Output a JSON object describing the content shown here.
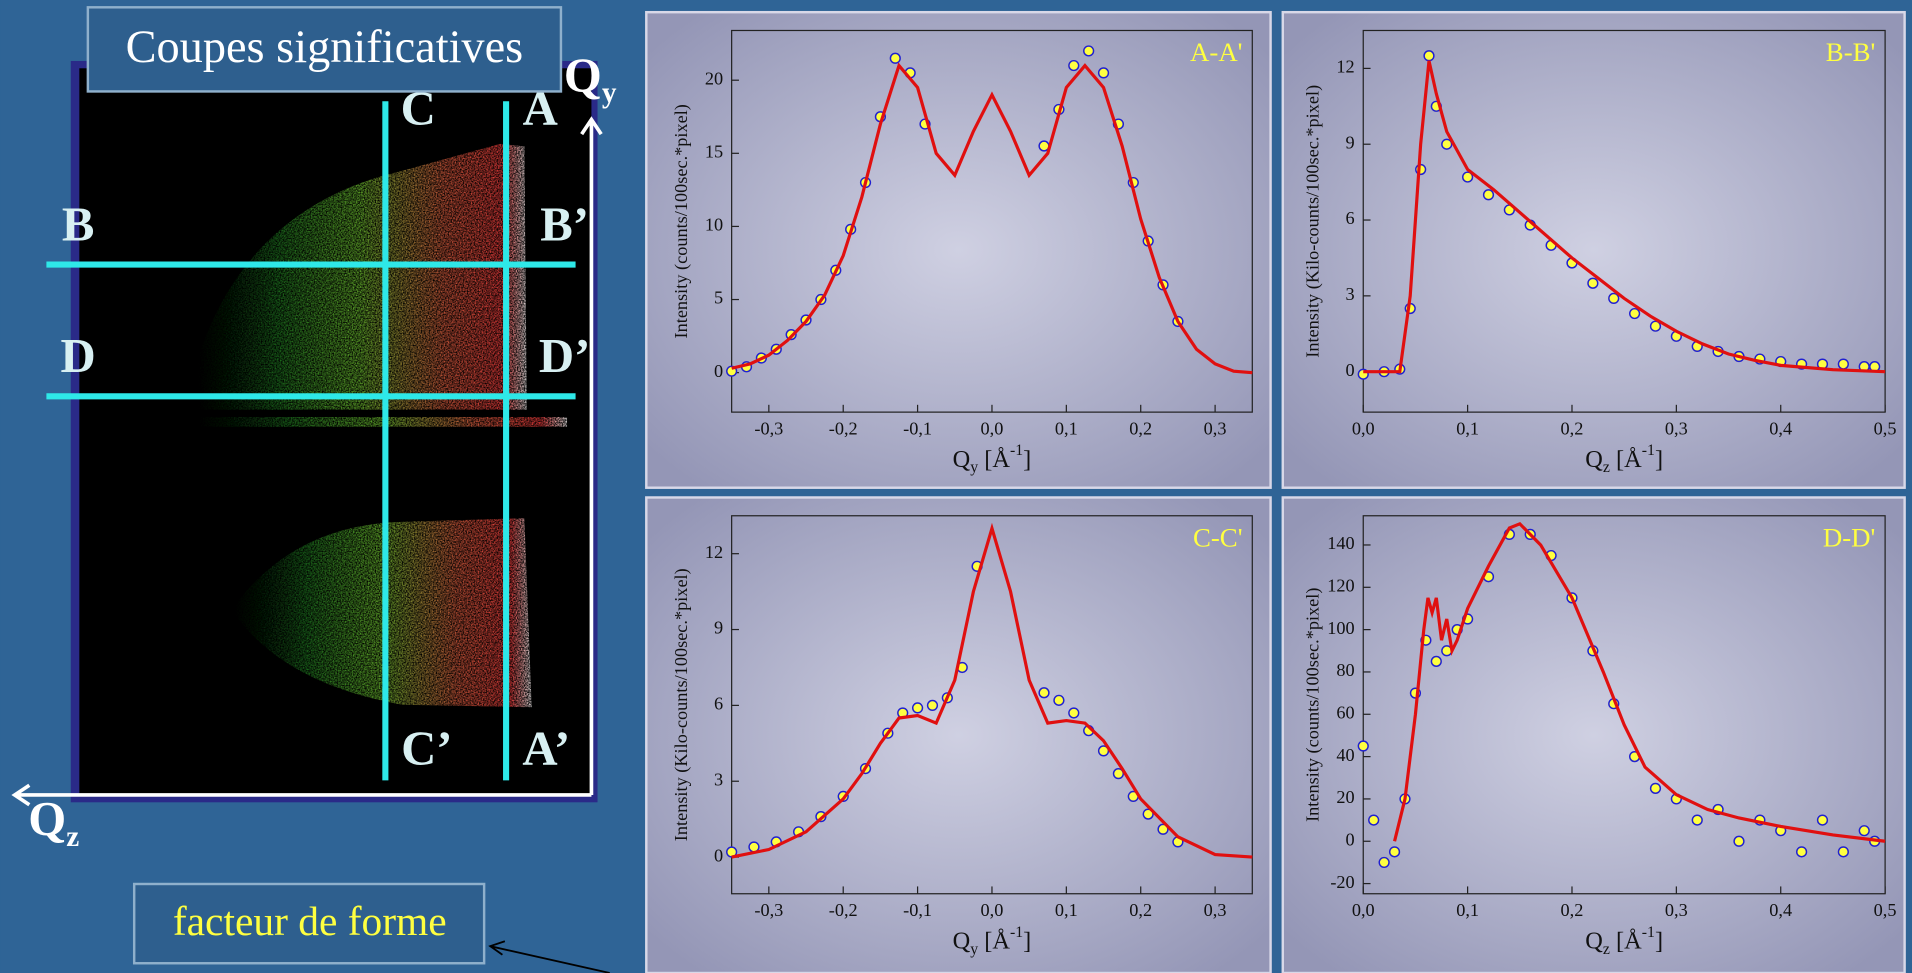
{
  "slide": {
    "title": "Coupes significatives",
    "note": "facteur de forme",
    "map_labels": {
      "c": "C",
      "a": "A",
      "b": "B",
      "b2": "B’",
      "d": "D",
      "d2": "D’",
      "c2": "C’",
      "a2": "A’",
      "qy": "Q",
      "qy_sub": "y",
      "qz": "Q",
      "qz_sub": "z"
    }
  },
  "chart_data": [
    {
      "type": "line",
      "label": "A-A'",
      "ylabel": "Intensity (counts/100sec.*pixel)",
      "xlabel": [
        "Q",
        "y",
        " [Å",
        "-1",
        "]"
      ],
      "xlim": [
        -0.35,
        0.35
      ],
      "xticks": [
        {
          "value": -0.3,
          "label": "-0,3"
        },
        {
          "value": -0.2,
          "label": "-0,2"
        },
        {
          "value": -0.1,
          "label": "-0,1"
        },
        {
          "value": 0,
          "label": "0,0"
        },
        {
          "value": 0.1,
          "label": "0,1"
        },
        {
          "value": 0.2,
          "label": "0,2"
        },
        {
          "value": 0.3,
          "label": "0,3"
        }
      ],
      "ylim": [
        -2.7,
        23.4
      ],
      "yticks": [
        0,
        5,
        10,
        15,
        20
      ],
      "series": [
        {
          "type": "scatter",
          "color": "#ffff40",
          "edge": "#2020d0",
          "x": [
            -0.35,
            -0.33,
            -0.31,
            -0.29,
            -0.27,
            -0.25,
            -0.23,
            -0.21,
            -0.19,
            -0.17,
            -0.15,
            -0.13,
            -0.11,
            -0.09,
            0.07,
            0.09,
            0.11,
            0.13,
            0.15,
            0.17,
            0.19,
            0.21,
            0.23,
            0.25
          ],
          "values": [
            0.1,
            0.4,
            1,
            1.6,
            2.6,
            3.6,
            5,
            7,
            9.8,
            13,
            17.5,
            21.5,
            20.5,
            17,
            15.5,
            18,
            21,
            22,
            20.5,
            17,
            13,
            9,
            6,
            3.5
          ]
        },
        {
          "type": "line",
          "color": "#e01010",
          "x": [
            -0.35,
            -0.325,
            -0.3,
            -0.275,
            -0.25,
            -0.225,
            -0.2,
            -0.175,
            -0.15,
            -0.125,
            -0.1,
            -0.075,
            -0.05,
            -0.025,
            0,
            0.025,
            0.05,
            0.075,
            0.1,
            0.125,
            0.15,
            0.175,
            0.2,
            0.225,
            0.25,
            0.275,
            0.3,
            0.325,
            0.35
          ],
          "values": [
            0.3,
            0.6,
            1.2,
            2.2,
            3.5,
            5.3,
            8,
            12,
            17,
            21,
            19.5,
            15,
            13.5,
            16.5,
            19,
            16.5,
            13.5,
            15,
            19.5,
            21,
            19.5,
            15.5,
            10.5,
            6.5,
            3.5,
            1.6,
            0.6,
            0.1,
            0
          ]
        }
      ]
    },
    {
      "type": "line",
      "label": "B-B'",
      "ylabel": "Intensity (Kilo-counts/100sec.*pixel)",
      "xlabel": [
        "Q",
        "z",
        " [Å",
        "-1",
        "]"
      ],
      "xlim": [
        0,
        0.5
      ],
      "xticks": [
        {
          "value": 0,
          "label": "0,0"
        },
        {
          "value": 0.1,
          "label": "0,1"
        },
        {
          "value": 0.2,
          "label": "0,2"
        },
        {
          "value": 0.3,
          "label": "0,3"
        },
        {
          "value": 0.4,
          "label": "0,4"
        },
        {
          "value": 0.5,
          "label": "0,5"
        }
      ],
      "ylim": [
        -1.6,
        13.5
      ],
      "yticks": [
        0,
        3,
        6,
        9,
        12
      ],
      "series": [
        {
          "type": "scatter",
          "color": "#ffff40",
          "edge": "#2020d0",
          "x": [
            0,
            0.02,
            0.035,
            0.045,
            0.055,
            0.063,
            0.07,
            0.08,
            0.1,
            0.12,
            0.14,
            0.16,
            0.18,
            0.2,
            0.22,
            0.24,
            0.26,
            0.28,
            0.3,
            0.32,
            0.34,
            0.36,
            0.38,
            0.4,
            0.42,
            0.44,
            0.46,
            0.48,
            0.49
          ],
          "values": [
            -0.1,
            0,
            0.1,
            2.5,
            8,
            12.5,
            10.5,
            9,
            7.7,
            7,
            6.4,
            5.8,
            5,
            4.3,
            3.5,
            2.9,
            2.3,
            1.8,
            1.4,
            1,
            0.8,
            0.6,
            0.5,
            0.4,
            0.3,
            0.3,
            0.3,
            0.2,
            0.2
          ]
        },
        {
          "type": "line",
          "color": "#e01010",
          "x": [
            0,
            0.035,
            0.045,
            0.055,
            0.063,
            0.07,
            0.08,
            0.1,
            0.125,
            0.15,
            0.175,
            0.2,
            0.225,
            0.25,
            0.275,
            0.3,
            0.325,
            0.35,
            0.375,
            0.4,
            0.45,
            0.5
          ],
          "values": [
            0,
            0,
            3,
            9,
            12.3,
            11,
            9.5,
            8,
            7.2,
            6.3,
            5.4,
            4.5,
            3.7,
            2.9,
            2.2,
            1.6,
            1.1,
            0.7,
            0.45,
            0.25,
            0.08,
            0
          ]
        }
      ]
    },
    {
      "type": "line",
      "label": "C-C'",
      "ylabel": "Intensity (Kilo-counts/100sec.*pixel)",
      "xlabel": [
        "Q",
        "y",
        " [Å",
        "-1",
        "]"
      ],
      "xlim": [
        -0.35,
        0.35
      ],
      "xticks": [
        {
          "value": -0.3,
          "label": "-0,3"
        },
        {
          "value": -0.2,
          "label": "-0,2"
        },
        {
          "value": -0.1,
          "label": "-0,1"
        },
        {
          "value": 0,
          "label": "0,0"
        },
        {
          "value": 0.1,
          "label": "0,1"
        },
        {
          "value": 0.2,
          "label": "0,2"
        },
        {
          "value": 0.3,
          "label": "0,3"
        }
      ],
      "ylim": [
        -1.45,
        13.5
      ],
      "yticks": [
        0,
        3,
        6,
        9,
        12
      ],
      "series": [
        {
          "type": "scatter",
          "color": "#ffff40",
          "edge": "#2020d0",
          "x": [
            -0.35,
            -0.32,
            -0.29,
            -0.26,
            -0.23,
            -0.2,
            -0.17,
            -0.14,
            -0.12,
            -0.1,
            -0.08,
            -0.06,
            -0.04,
            -0.02,
            0.07,
            0.09,
            0.11,
            0.13,
            0.15,
            0.17,
            0.19,
            0.21,
            0.23,
            0.25
          ],
          "values": [
            0.2,
            0.4,
            0.6,
            1,
            1.6,
            2.4,
            3.5,
            4.9,
            5.7,
            5.9,
            6,
            6.3,
            7.5,
            11.5,
            6.5,
            6.2,
            5.7,
            5,
            4.2,
            3.3,
            2.4,
            1.7,
            1.1,
            0.6
          ]
        },
        {
          "type": "line",
          "color": "#e01010",
          "x": [
            -0.35,
            -0.3,
            -0.25,
            -0.2,
            -0.175,
            -0.15,
            -0.125,
            -0.1,
            -0.075,
            -0.05,
            -0.025,
            0,
            0.025,
            0.05,
            0.075,
            0.1,
            0.125,
            0.15,
            0.175,
            0.2,
            0.25,
            0.3,
            0.35
          ],
          "values": [
            0,
            0.3,
            1,
            2.3,
            3.3,
            4.5,
            5.5,
            5.6,
            5.3,
            7,
            10.5,
            13,
            10.5,
            7,
            5.3,
            5.4,
            5.3,
            4.6,
            3.5,
            2.3,
            0.8,
            0.1,
            0
          ]
        }
      ]
    },
    {
      "type": "line",
      "label": "D-D'",
      "ylabel": "Intensity (counts/100sec.*pixel)",
      "xlabel": [
        "Q",
        "z",
        " [Å",
        "-1",
        "]"
      ],
      "xlim": [
        0,
        0.5
      ],
      "xticks": [
        {
          "value": 0,
          "label": "0,0"
        },
        {
          "value": 0.1,
          "label": "0,1"
        },
        {
          "value": 0.2,
          "label": "0,2"
        },
        {
          "value": 0.3,
          "label": "0,3"
        },
        {
          "value": 0.4,
          "label": "0,4"
        },
        {
          "value": 0.5,
          "label": "0,5"
        }
      ],
      "ylim": [
        -24.8,
        153.8
      ],
      "yticks": [
        -20,
        0,
        20,
        40,
        60,
        80,
        100,
        120,
        140
      ],
      "series": [
        {
          "type": "scatter",
          "color": "#ffff40",
          "edge": "#2020d0",
          "x": [
            0,
            0.01,
            0.02,
            0.03,
            0.04,
            0.05,
            0.06,
            0.07,
            0.08,
            0.09,
            0.1,
            0.12,
            0.14,
            0.16,
            0.18,
            0.2,
            0.22,
            0.24,
            0.26,
            0.28,
            0.3,
            0.32,
            0.34,
            0.36,
            0.38,
            0.4,
            0.42,
            0.44,
            0.46,
            0.48,
            0.49
          ],
          "values": [
            45,
            10,
            -10,
            -5,
            20,
            70,
            95,
            85,
            90,
            100,
            105,
            125,
            145,
            145,
            135,
            115,
            90,
            65,
            40,
            25,
            20,
            10,
            15,
            0,
            10,
            5,
            -5,
            10,
            -5,
            5,
            0
          ]
        },
        {
          "type": "line",
          "color": "#e01010",
          "x": [
            0.03,
            0.04,
            0.05,
            0.058,
            0.062,
            0.066,
            0.07,
            0.075,
            0.08,
            0.085,
            0.09,
            0.1,
            0.12,
            0.14,
            0.15,
            0.17,
            0.2,
            0.23,
            0.25,
            0.27,
            0.3,
            0.33,
            0.36,
            0.4,
            0.45,
            0.5
          ],
          "values": [
            0,
            20,
            60,
            100,
            115,
            108,
            115,
            95,
            105,
            90,
            95,
            110,
            130,
            148,
            150,
            140,
            115,
            80,
            55,
            35,
            22,
            15,
            11,
            7,
            3,
            0
          ]
        }
      ]
    }
  ]
}
